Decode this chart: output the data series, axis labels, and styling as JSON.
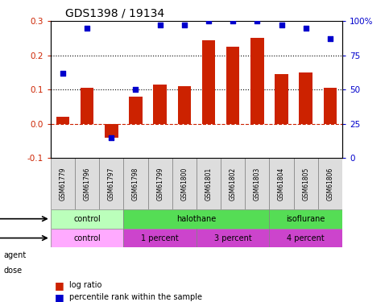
{
  "title": "GDS1398 / 19134",
  "samples": [
    "GSM61779",
    "GSM61796",
    "GSM61797",
    "GSM61798",
    "GSM61799",
    "GSM61800",
    "GSM61801",
    "GSM61802",
    "GSM61803",
    "GSM61804",
    "GSM61805",
    "GSM61806"
  ],
  "log_ratio": [
    0.02,
    0.105,
    -0.04,
    0.08,
    0.115,
    0.11,
    0.245,
    0.225,
    0.25,
    0.145,
    0.15,
    0.105
  ],
  "percentile": [
    62,
    95,
    15,
    50,
    97,
    97,
    100,
    100,
    100,
    97,
    95,
    87
  ],
  "ylim_left": [
    -0.1,
    0.3
  ],
  "ylim_right": [
    0,
    100
  ],
  "yticks_left": [
    -0.1,
    0.0,
    0.1,
    0.2,
    0.3
  ],
  "yticks_right": [
    0,
    25,
    50,
    75,
    100
  ],
  "ytick_labels_right": [
    "0",
    "25",
    "50",
    "75",
    "100%"
  ],
  "hlines": [
    0.1,
    0.2
  ],
  "bar_color": "#cc2200",
  "dot_color": "#0000cc",
  "zero_line_color": "#cc2200",
  "agent_groups": [
    {
      "label": "control",
      "start": 0,
      "end": 3,
      "color": "#bbffbb"
    },
    {
      "label": "halothane",
      "start": 3,
      "end": 9,
      "color": "#55dd55"
    },
    {
      "label": "isoflurane",
      "start": 9,
      "end": 12,
      "color": "#55dd55"
    }
  ],
  "dose_groups": [
    {
      "label": "control",
      "start": 0,
      "end": 3,
      "color": "#ffaaff"
    },
    {
      "label": "1 percent",
      "start": 3,
      "end": 6,
      "color": "#cc44cc"
    },
    {
      "label": "3 percent",
      "start": 6,
      "end": 9,
      "color": "#cc44cc"
    },
    {
      "label": "4 percent",
      "start": 9,
      "end": 12,
      "color": "#cc44cc"
    }
  ],
  "legend_bar_label": "log ratio",
  "legend_dot_label": "percentile rank within the sample",
  "agent_label": "agent",
  "dose_label": "dose"
}
